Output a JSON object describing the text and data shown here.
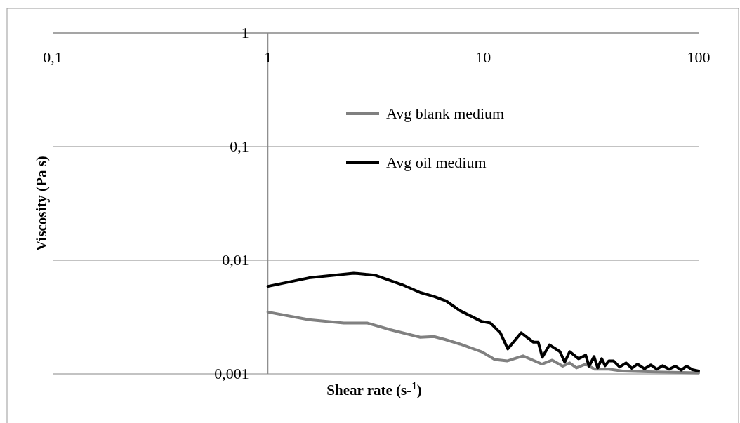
{
  "chart_data": {
    "type": "line",
    "xlabel": "Shear rate (s-$^{1}$)",
    "ylabel": "Viscosity (Pa s)",
    "log": "xy",
    "xlim": [
      0.1,
      100
    ],
    "xticks": [
      {
        "value": 0.1,
        "label": "0,1"
      },
      1,
      10,
      100
    ],
    "ylim": [
      0.001,
      1
    ],
    "yticks": [
      {
        "value": 0.001,
        "label": "0,001"
      },
      {
        "value": 0.01,
        "label": "0,01"
      },
      {
        "value": 0.1,
        "label": "0,1"
      },
      1
    ],
    "grid": "y",
    "legend": "top right",
    "marker": "none",
    "line_style": "solid",
    "series": [
      {
        "name": "Avg blank medium",
        "color": "#808080",
        "x": [
          1,
          1.55,
          2.25,
          2.9,
          3.7,
          5.1,
          5.9,
          6.7,
          7.8,
          9.8,
          11.3,
          12.9,
          15.3,
          18.7,
          20.9,
          23.4,
          25.2,
          27.1,
          29.9,
          32.9,
          38.3,
          44.4,
          62.7,
          100
        ],
        "values": [
          0.0035,
          0.003,
          0.0028,
          0.0028,
          0.00245,
          0.0021,
          0.00213,
          0.002,
          0.00183,
          0.00157,
          0.00134,
          0.0013,
          0.00144,
          0.00122,
          0.00132,
          0.00117,
          0.00125,
          0.00113,
          0.00122,
          0.0011,
          0.0011,
          0.00106,
          0.00104,
          0.00102
        ]
      },
      {
        "name": "Avg oil medium",
        "color": "#000000",
        "x": [
          1,
          1.55,
          2.5,
          3.13,
          4.2,
          5.1,
          5.9,
          6.7,
          7.8,
          9.8,
          10.8,
          12,
          13,
          15,
          17.1,
          18,
          18.8,
          20.3,
          22.7,
          23.9,
          25.2,
          27.7,
          29.9,
          31,
          32.7,
          34,
          35.5,
          36.8,
          38.3,
          40.3,
          43,
          46,
          49,
          52,
          56,
          60,
          64,
          68,
          73,
          78,
          83,
          88,
          93.5,
          100
        ],
        "values": [
          0.0059,
          0.007,
          0.0077,
          0.0074,
          0.0061,
          0.0052,
          0.0048,
          0.0044,
          0.0036,
          0.0029,
          0.0028,
          0.0023,
          0.00166,
          0.0023,
          0.0019,
          0.0019,
          0.0014,
          0.0018,
          0.00157,
          0.00127,
          0.00157,
          0.00136,
          0.00146,
          0.00117,
          0.00142,
          0.00113,
          0.00136,
          0.00118,
          0.0013,
          0.0013,
          0.00115,
          0.00125,
          0.00112,
          0.00122,
          0.00111,
          0.0012,
          0.0011,
          0.00118,
          0.0011,
          0.00117,
          0.00108,
          0.00117,
          0.00109,
          0.00106
        ]
      }
    ]
  }
}
